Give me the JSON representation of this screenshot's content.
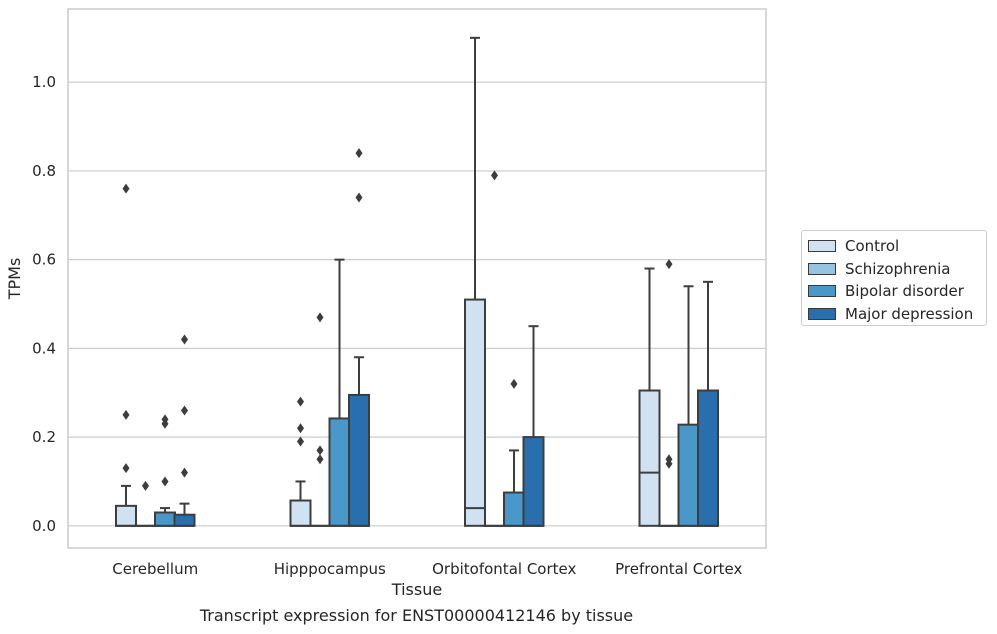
{
  "chart_data": {
    "type": "box",
    "title": "",
    "xlabel": "Tissue",
    "ylabel": "TPMs",
    "ylim": [
      -0.05,
      1.165
    ],
    "yticks": [
      0.0,
      0.2,
      0.4,
      0.6,
      0.8,
      1.0
    ],
    "ytick_labels": [
      "0.0",
      "0.2",
      "0.4",
      "0.6",
      "0.8",
      "1.0"
    ],
    "grid": true,
    "legend_position": "right",
    "categories": [
      "Cerebellum",
      "Hipppocampus",
      "Orbitofontal Cortex",
      "Prefrontal Cortex"
    ],
    "series": [
      {
        "name": "Control",
        "color": "#d0e1f2",
        "boxes": [
          {
            "q1": 0.0,
            "median": 0.0,
            "q3": 0.045,
            "whisker_low": 0.0,
            "whisker_high": 0.09,
            "outliers": [
              0.13,
              0.25,
              0.76
            ]
          },
          {
            "q1": 0.0,
            "median": 0.0,
            "q3": 0.057,
            "whisker_low": 0.0,
            "whisker_high": 0.1,
            "outliers": [
              0.19,
              0.22,
              0.28
            ]
          },
          {
            "q1": 0.0,
            "median": 0.04,
            "q3": 0.51,
            "whisker_low": 0.0,
            "whisker_high": 1.1,
            "outliers": []
          },
          {
            "q1": 0.0,
            "median": 0.12,
            "q3": 0.305,
            "whisker_low": 0.0,
            "whisker_high": 0.58,
            "outliers": []
          }
        ]
      },
      {
        "name": "Schizophrenia",
        "color": "#94c4df",
        "boxes": [
          {
            "q1": 0.0,
            "median": 0.0,
            "q3": 0.0,
            "whisker_low": 0.0,
            "whisker_high": 0.0,
            "outliers": [
              0.09
            ]
          },
          {
            "q1": 0.0,
            "median": 0.0,
            "q3": 0.0,
            "whisker_low": 0.0,
            "whisker_high": 0.0,
            "outliers": [
              0.15,
              0.17,
              0.47
            ]
          },
          {
            "q1": 0.0,
            "median": 0.0,
            "q3": 0.0,
            "whisker_low": 0.0,
            "whisker_high": 0.0,
            "outliers": [
              0.79
            ]
          },
          {
            "q1": 0.0,
            "median": 0.0,
            "q3": 0.0,
            "whisker_low": 0.0,
            "whisker_high": 0.0,
            "outliers": [
              0.14,
              0.15,
              0.59
            ]
          }
        ]
      },
      {
        "name": "Bipolar disorder",
        "color": "#4a98c9",
        "boxes": [
          {
            "q1": 0.0,
            "median": 0.0,
            "q3": 0.03,
            "whisker_low": 0.0,
            "whisker_high": 0.04,
            "outliers": [
              0.1,
              0.23,
              0.24
            ]
          },
          {
            "q1": 0.0,
            "median": 0.0,
            "q3": 0.242,
            "whisker_low": 0.0,
            "whisker_high": 0.6,
            "outliers": []
          },
          {
            "q1": 0.0,
            "median": 0.0,
            "q3": 0.075,
            "whisker_low": 0.0,
            "whisker_high": 0.17,
            "outliers": [
              0.32
            ]
          },
          {
            "q1": 0.0,
            "median": 0.0,
            "q3": 0.228,
            "whisker_low": 0.0,
            "whisker_high": 0.54,
            "outliers": []
          }
        ]
      },
      {
        "name": "Major depression",
        "color": "#2a6fad",
        "boxes": [
          {
            "q1": 0.0,
            "median": 0.0,
            "q3": 0.025,
            "whisker_low": 0.0,
            "whisker_high": 0.05,
            "outliers": [
              0.12,
              0.26,
              0.42
            ]
          },
          {
            "q1": 0.0,
            "median": 0.0,
            "q3": 0.295,
            "whisker_low": 0.0,
            "whisker_high": 0.38,
            "outliers": [
              0.74,
              0.84
            ]
          },
          {
            "q1": 0.0,
            "median": 0.0,
            "q3": 0.2,
            "whisker_low": 0.0,
            "whisker_high": 0.45,
            "outliers": []
          },
          {
            "q1": 0.0,
            "median": 0.0,
            "q3": 0.305,
            "whisker_low": 0.0,
            "whisker_high": 0.55,
            "outliers": []
          }
        ]
      }
    ],
    "caption": "Transcript expression for ENST00000412146 by tissue"
  }
}
